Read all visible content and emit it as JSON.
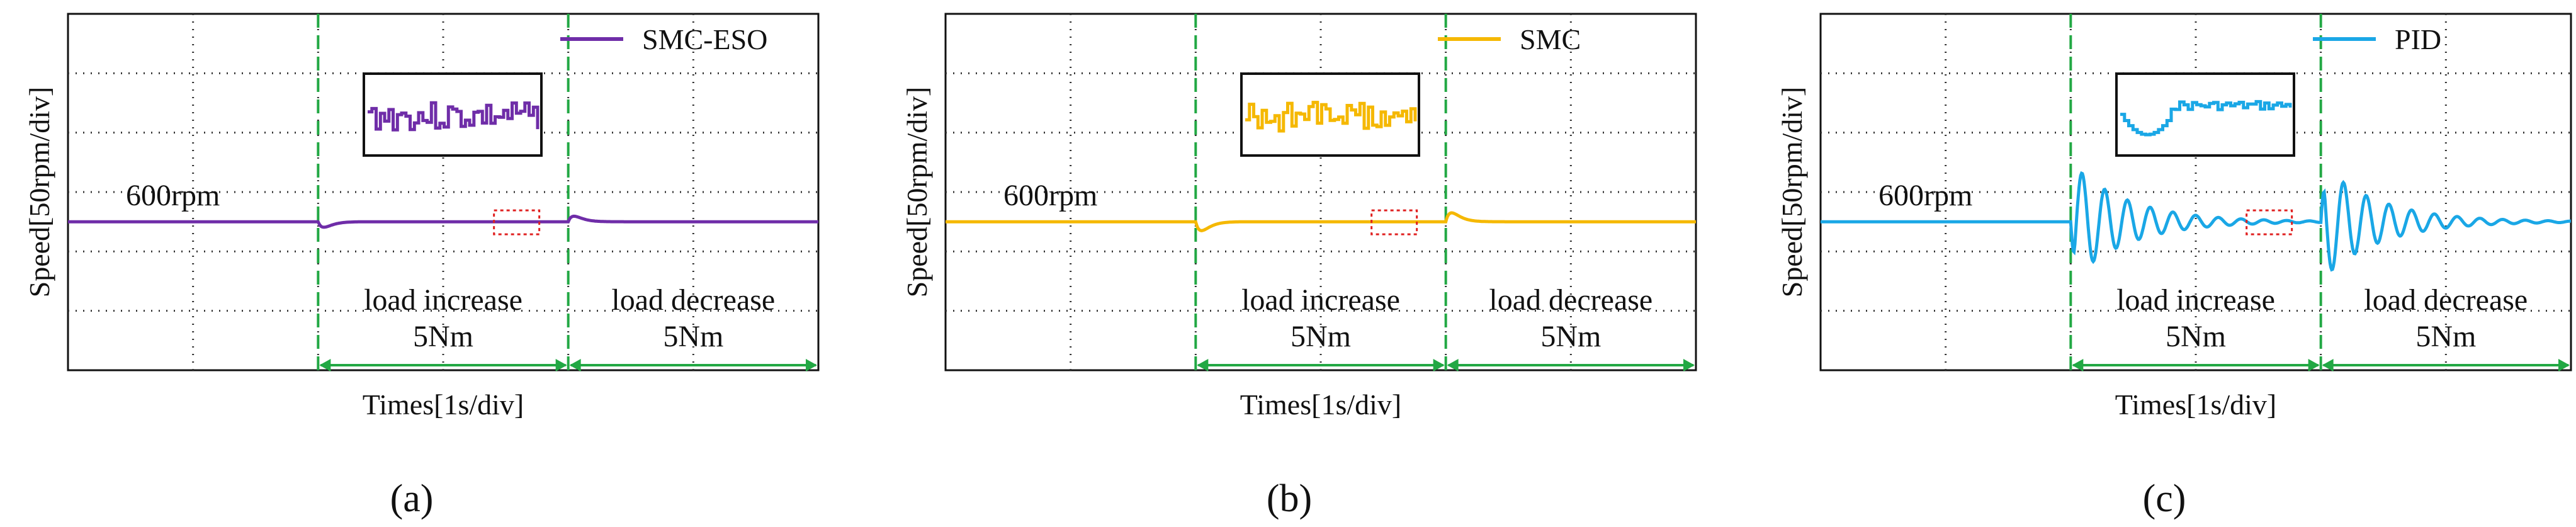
{
  "colors": {
    "smc_eso": "#6f2da8",
    "smc": "#f5b800",
    "pid": "#1aa7e6",
    "divider": "#22a844",
    "arrow": "#22a844",
    "zoom_box": "#e02020",
    "grid": "#333333",
    "frame": "#111111"
  },
  "chart_data": [
    {
      "type": "line",
      "panel_label": "(a)",
      "series": [
        {
          "name": "SMC-ESO",
          "color_key": "smc_eso",
          "baseline": 600,
          "dip": -5,
          "overshoot": 5,
          "oscillation": "none",
          "settle_s": 1.4
        }
      ],
      "xlabel": "Times[1s/div]",
      "ylabel": "Speed[50rpm/div]",
      "x_div": 1,
      "y_div": 50,
      "x_range_s": [
        0,
        6
      ],
      "y_range_rpm": [
        475,
        775
      ],
      "events": [
        {
          "t": 2,
          "label": "load increase",
          "magnitude": "5Nm"
        },
        {
          "t": 4,
          "label": "load decrease",
          "magnitude": "5Nm"
        }
      ],
      "reference_label": "600rpm",
      "inset": "steady-state ripple zoom"
    },
    {
      "type": "line",
      "panel_label": "(b)",
      "series": [
        {
          "name": "SMC",
          "color_key": "smc",
          "baseline": 600,
          "dip": -8,
          "overshoot": 8,
          "oscillation": "none",
          "settle_s": 1.6
        }
      ],
      "xlabel": "Times[1s/div]",
      "ylabel": "Speed[50rpm/div]",
      "x_div": 1,
      "y_div": 50,
      "x_range_s": [
        0,
        6
      ],
      "y_range_rpm": [
        475,
        775
      ],
      "events": [
        {
          "t": 2,
          "label": "load increase",
          "magnitude": "5Nm"
        },
        {
          "t": 4,
          "label": "load decrease",
          "magnitude": "5Nm"
        }
      ],
      "reference_label": "600rpm",
      "inset": "steady-state ripple zoom"
    },
    {
      "type": "line",
      "panel_label": "(c)",
      "series": [
        {
          "name": "PID",
          "color_key": "pid",
          "baseline": 600,
          "dip": -50,
          "overshoot": 50,
          "oscillation": "damped",
          "settle_s": 1.8
        }
      ],
      "xlabel": "Times[1s/div]",
      "ylabel": "Speed[50rpm/div]",
      "x_div": 1,
      "y_div": 50,
      "x_range_s": [
        0,
        6
      ],
      "y_range_rpm": [
        475,
        775
      ],
      "events": [
        {
          "t": 2,
          "label": "load increase",
          "magnitude": "5Nm"
        },
        {
          "t": 4,
          "label": "load decrease",
          "magnitude": "5Nm"
        }
      ],
      "reference_label": "600rpm",
      "inset": "steady-state ripple zoom"
    }
  ]
}
